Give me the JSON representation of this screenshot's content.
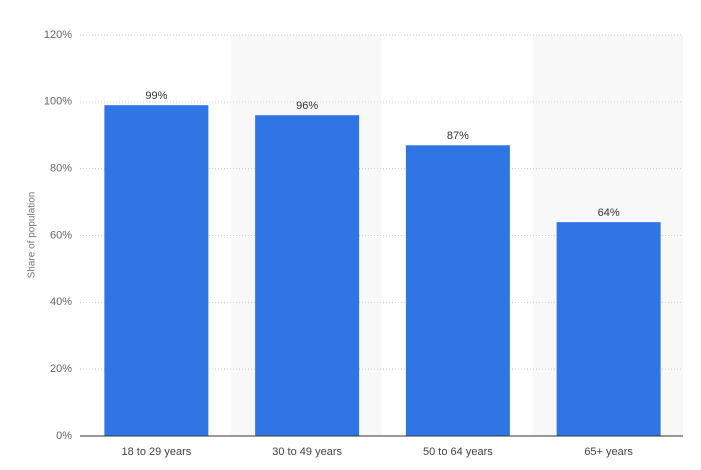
{
  "chart_data": {
    "type": "bar",
    "y_label": "Share of population",
    "categories": [
      "18 to 29 years",
      "30 to 49 years",
      "50 to 64 years",
      "65+ years"
    ],
    "values": [
      99,
      96,
      87,
      64
    ],
    "value_labels": [
      "99%",
      "96%",
      "87%",
      "64%"
    ],
    "color": "#2f76e4",
    "ylim": [
      0,
      120
    ],
    "yticks": [
      {
        "value": 0,
        "label": "0%"
      },
      {
        "value": 20,
        "label": "20%"
      },
      {
        "value": 40,
        "label": "40%"
      },
      {
        "value": 60,
        "label": "60%"
      },
      {
        "value": 80,
        "label": "80%"
      },
      {
        "value": 100,
        "label": "100%"
      },
      {
        "value": 120,
        "label": "120%"
      }
    ],
    "grid": true
  }
}
